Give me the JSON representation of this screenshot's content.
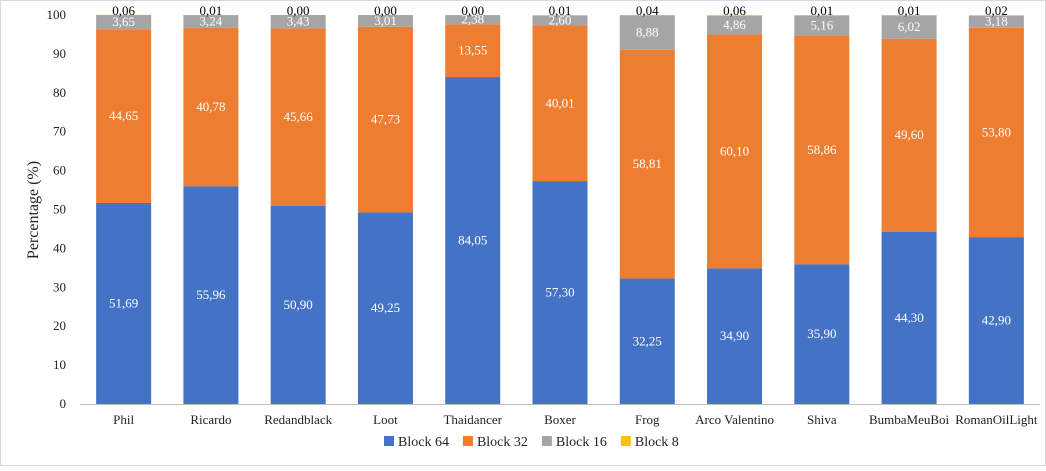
{
  "chart_data": {
    "type": "bar",
    "stacked": true,
    "categories": [
      "Phil",
      "Ricardo",
      "Redandblack",
      "Loot",
      "Thaidancer",
      "Boxer",
      "Frog",
      "Arco Valentino",
      "Shiva",
      "BumbaMeuBoi",
      "RomanOilLight"
    ],
    "series": [
      {
        "name": "Block 64",
        "color": "#4472C4",
        "label_color": "#ffffff",
        "values": [
          51.69,
          55.96,
          50.9,
          49.25,
          84.05,
          57.3,
          32.25,
          34.9,
          35.9,
          44.3,
          42.9
        ],
        "labels": [
          "51,69",
          "55,96",
          "50,90",
          "49,25",
          "84,05",
          "57,30",
          "32,25",
          "34,90",
          "35,90",
          "44,30",
          "42,90"
        ]
      },
      {
        "name": "Block 32",
        "color": "#ED7D31",
        "label_color": "#ffffff",
        "values": [
          44.65,
          40.78,
          45.66,
          47.73,
          13.55,
          40.01,
          58.81,
          60.1,
          58.86,
          49.6,
          53.8
        ],
        "labels": [
          "44,65",
          "40,78",
          "45,66",
          "47,73",
          "13,55",
          "40,01",
          "58,81",
          "60,10",
          "58,86",
          "49,60",
          "53,80"
        ]
      },
      {
        "name": "Block 16",
        "color": "#A5A5A5",
        "label_color": "#ffffff",
        "values": [
          3.65,
          3.24,
          3.43,
          3.01,
          2.38,
          2.6,
          8.88,
          4.86,
          5.16,
          6.02,
          3.18
        ],
        "labels": [
          "3,65",
          "3,24",
          "3,43",
          "3,01",
          "2,38",
          "2,60",
          "8,88",
          "4,86",
          "5,16",
          "6,02",
          "3,18"
        ]
      },
      {
        "name": "Block 8",
        "color": "#FFC000",
        "label_color": "#000000",
        "values": [
          0.06,
          0.01,
          0.0,
          0.0,
          0.0,
          0.01,
          0.04,
          0.06,
          0.01,
          0.01,
          0.02
        ],
        "labels": [
          "0,06",
          "0,01",
          "0,00",
          "0,00",
          "0,00",
          "0,01",
          "0,04",
          "0,06",
          "0,01",
          "0,01",
          "0,02"
        ]
      }
    ],
    "title": "",
    "xlabel": "",
    "ylabel": "Percentage (%)",
    "ylim": [
      0,
      100
    ],
    "yticks": [
      0,
      10,
      20,
      30,
      40,
      50,
      60,
      70,
      80,
      90,
      100
    ],
    "grid": false,
    "legend_position": "bottom"
  }
}
